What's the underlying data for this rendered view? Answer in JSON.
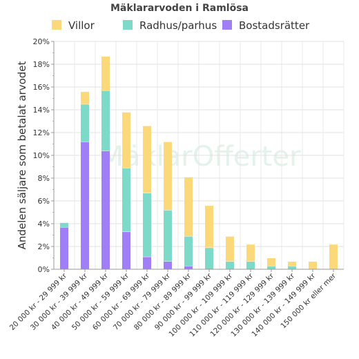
{
  "chart_data": {
    "type": "bar",
    "stacked": true,
    "title": "Mäklararvoden i Ramlösa",
    "ylabel": "Andelen säljare som betalat arvodet",
    "xlabel": "",
    "ylim": [
      0,
      20
    ],
    "yticks": [
      "0%",
      "2%",
      "4%",
      "6%",
      "8%",
      "10%",
      "12%",
      "14%",
      "16%",
      "18%",
      "20%"
    ],
    "grid": true,
    "legend_position": "top",
    "watermark": "MäklarOfferter",
    "categories": [
      "20 000 kr - 29 999 kr",
      "30 000 kr - 39 999 kr",
      "40 000 kr - 49 999 kr",
      "50 000 kr - 59 999 kr",
      "60 000 kr - 69 999 kr",
      "70 000 kr - 79 999 kr",
      "80 000 kr - 89 999 kr",
      "90 000 kr - 99 999 kr",
      "100 000 kr - 109 999 kr",
      "110 000 kr - 119 999 kr",
      "120 000 kr - 129 999 kr",
      "130 000 kr - 139 999 kr",
      "140 000 kr - 149 999 kr",
      "150 000 kr eller mer"
    ],
    "series": [
      {
        "name": "Bostadsrätter",
        "color": "#a07ef5",
        "values": [
          3.7,
          11.2,
          10.4,
          3.3,
          1.1,
          0.7,
          0.3,
          0,
          0,
          0,
          0,
          0,
          0,
          0
        ]
      },
      {
        "name": "Radhus/parhus",
        "color": "#7dd9c8",
        "values": [
          0.4,
          3.3,
          5.3,
          5.6,
          5.6,
          4.5,
          2.6,
          1.9,
          0.7,
          0.7,
          0.3,
          0.3,
          0,
          0
        ]
      },
      {
        "name": "Villor",
        "color": "#fbd97a",
        "values": [
          0,
          1.1,
          3.0,
          4.9,
          5.9,
          6.0,
          5.2,
          3.7,
          2.2,
          1.5,
          0.7,
          0.4,
          0.7,
          2.2
        ]
      }
    ],
    "legend_order": [
      "Villor",
      "Radhus/parhus",
      "Bostadsrätter"
    ]
  }
}
